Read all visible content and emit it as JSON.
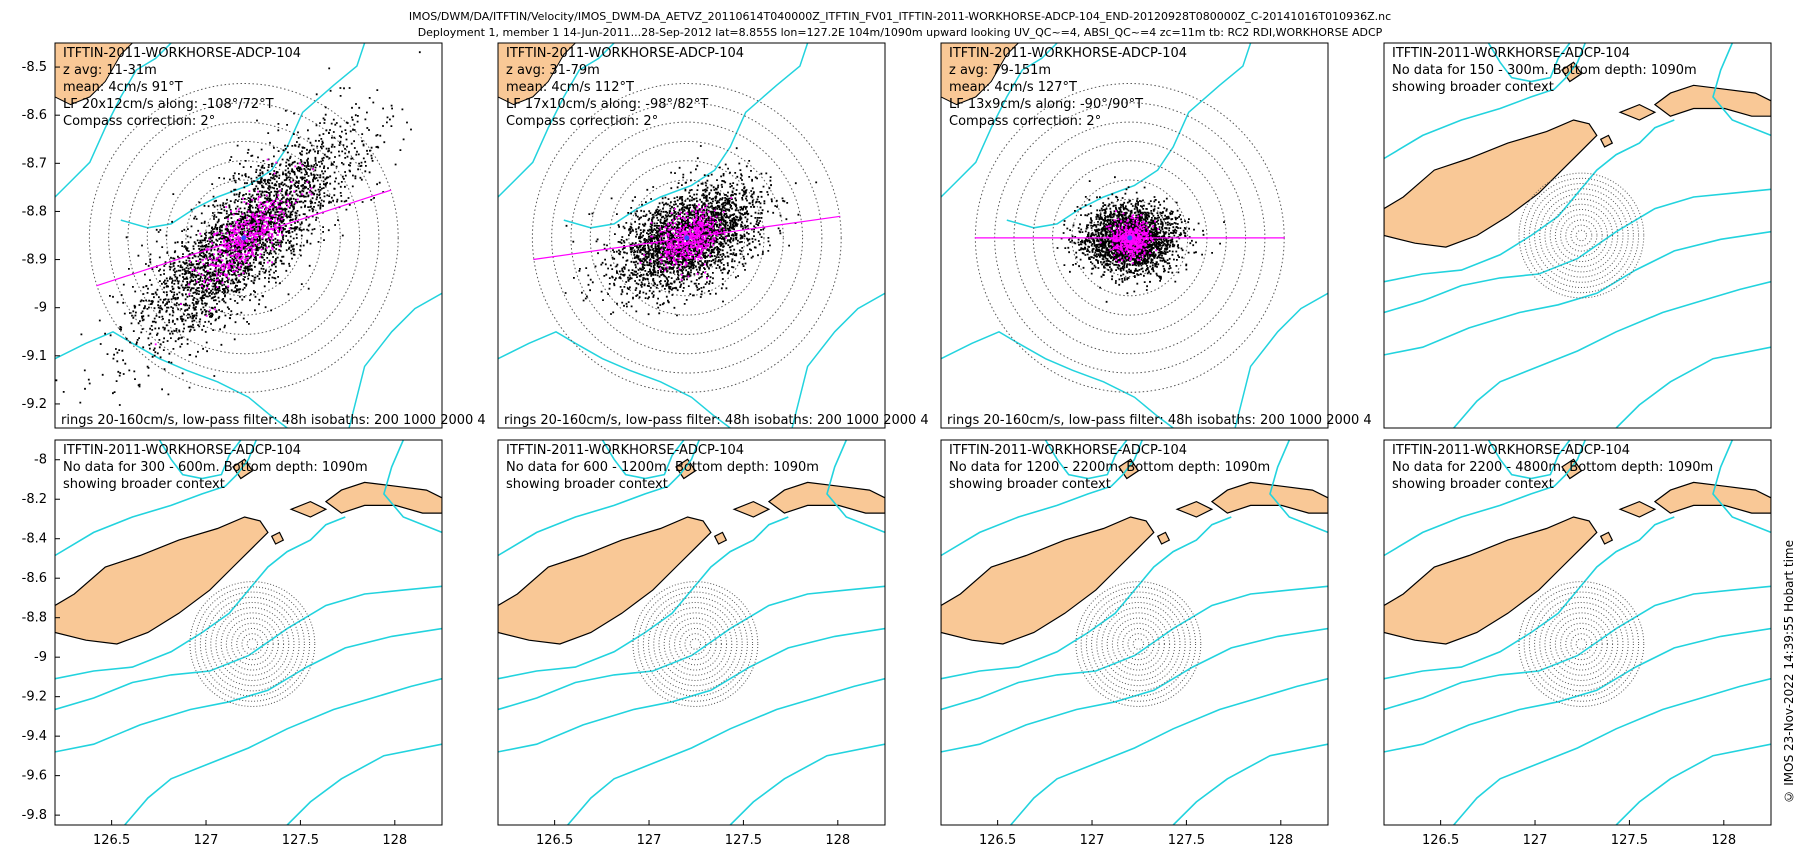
{
  "header": {
    "line1": "IMOS/DWM/DA/ITFTIN/Velocity/IMOS_DWM-DA_AETVZ_20110614T040000Z_ITFTIN_FV01_ITFTIN-2011-WORKHORSE-ADCP-104_END-20120928T080000Z_C-20141016T010936Z.nc",
    "line2": "Deployment 1, member 1 14-Jun-2011...28-Sep-2012 lat=8.855S lon=127.2E 104m/1090m upward looking UV_QC~=4, ABSI_QC~=4 zc=11m tb: RC2 RDI,WORKHORSE ADCP"
  },
  "footer": {
    "stamp": "© IMOS 23-Nov-2022 14:39:55 Hobart time"
  },
  "colors": {
    "land": "#f9c896",
    "isobath": "#22d3de",
    "scatter": "#000000",
    "magenta": "#ff00ff",
    "rings": "#555555"
  },
  "chart_data": [
    {
      "type": "scatter",
      "panel": 1,
      "instrument": "ITFTIN-2011-WORKHORSE-ADCP-104",
      "lines": [
        "z avg: 11-31m",
        "mean: 4cm/s 91°T",
        "LF 20x12cm/s along: -108°/72°T",
        "Compass correction: 2°"
      ],
      "bottom_note": "rings 20-160cm/s, low-pass filter: 48h isobaths: 200 1000 2000 4",
      "xlim": [
        126.2,
        128.25
      ],
      "ylim": [
        -9.25,
        -8.45
      ],
      "yticks": [
        -8.5,
        -8.6,
        -8.7,
        -8.8,
        -8.9,
        -9,
        -9.1,
        -9.2
      ],
      "ytick_labels": [
        "-8.5",
        "-8.6",
        "-8.7",
        "-8.8",
        "-8.9",
        "-9",
        "-9.1",
        "-9.2"
      ],
      "center": [
        127.2,
        -8.855
      ],
      "major_axis": {
        "direction_deg": 72,
        "half_length_deg": 0.8
      },
      "cloud": {
        "sx": 0.35,
        "sy": 0.07,
        "n": 3000
      }
    },
    {
      "type": "scatter",
      "panel": 2,
      "instrument": "ITFTIN-2011-WORKHORSE-ADCP-104",
      "lines": [
        "z avg: 31-79m",
        "mean: 4cm/s 112°T",
        "LF 17x10cm/s along: -98°/82°T",
        "Compass correction: 2°"
      ],
      "bottom_note": "rings 20-160cm/s, low-pass filter: 48h isobaths: 200 1000 2000 4",
      "xlim": [
        126.2,
        128.25
      ],
      "ylim": [
        -9.25,
        -8.45
      ],
      "center": [
        127.2,
        -8.855
      ],
      "major_axis": {
        "direction_deg": 82,
        "half_length_deg": 0.8
      },
      "cloud": {
        "sx": 0.22,
        "sy": 0.055,
        "n": 2800
      }
    },
    {
      "type": "scatter",
      "panel": 3,
      "instrument": "ITFTIN-2011-WORKHORSE-ADCP-104",
      "lines": [
        "z avg: 79-151m",
        "mean: 4cm/s 127°T",
        "LF 13x9cm/s along: -90°/90°T",
        "Compass correction: 2°"
      ],
      "bottom_note": "rings 20-160cm/s, low-pass filter: 48h isobaths: 200 1000 2000 4",
      "xlim": [
        126.2,
        128.25
      ],
      "ylim": [
        -9.25,
        -8.45
      ],
      "center": [
        127.2,
        -8.855
      ],
      "major_axis": {
        "direction_deg": 90,
        "half_length_deg": 0.8
      },
      "cloud": {
        "sx": 0.14,
        "sy": 0.042,
        "n": 2500
      }
    },
    {
      "type": "scatter",
      "panel": 4,
      "instrument": "ITFTIN-2011-WORKHORSE-ADCP-104",
      "lines": [
        "No data for 150 - 300m. Bottom depth: 1090m",
        "showing broader context"
      ],
      "bottom_note": "",
      "center": [
        127.2,
        -8.855
      ]
    },
    {
      "type": "scatter",
      "panel": 5,
      "instrument": "ITFTIN-2011-WORKHORSE-ADCP-104",
      "lines": [
        "No data for 300 - 600m. Bottom depth: 1090m",
        "showing broader context"
      ],
      "bottom_note": "",
      "xlim": [
        126.2,
        128.25
      ],
      "ylim": [
        -9.85,
        -7.9
      ],
      "yticks": [
        -8,
        -8.2,
        -8.4,
        -8.6,
        -8.8,
        -9,
        -9.2,
        -9.4,
        -9.6,
        -9.8
      ],
      "ytick_labels": [
        "-8",
        "-8.2",
        "-8.4",
        "-8.6",
        "-8.8",
        "-9",
        "-9.2",
        "-9.4",
        "-9.6",
        "-9.8"
      ],
      "xticks": [
        126.5,
        127,
        127.5,
        128
      ],
      "xtick_labels": [
        "126.5",
        "127",
        "127.5",
        "128"
      ],
      "center": [
        127.2,
        -8.855
      ]
    },
    {
      "type": "scatter",
      "panel": 6,
      "instrument": "ITFTIN-2011-WORKHORSE-ADCP-104",
      "lines": [
        "No data for 600 - 1200m. Bottom depth: 1090m",
        "showing broader context"
      ],
      "bottom_note": "",
      "center": [
        127.2,
        -8.855
      ]
    },
    {
      "type": "scatter",
      "panel": 7,
      "instrument": "ITFTIN-2011-WORKHORSE-ADCP-104",
      "lines": [
        "No data for 1200 - 2200m. Bottom depth: 1090m",
        "showing broader context"
      ],
      "bottom_note": "",
      "center": [
        127.2,
        -8.855
      ]
    },
    {
      "type": "scatter",
      "panel": 8,
      "instrument": "ITFTIN-2011-WORKHORSE-ADCP-104",
      "lines": [
        "No data for 2200 - 4800m. Bottom depth: 1090m",
        "showing broader context"
      ],
      "bottom_note": "",
      "center": [
        127.2,
        -8.855
      ]
    }
  ]
}
